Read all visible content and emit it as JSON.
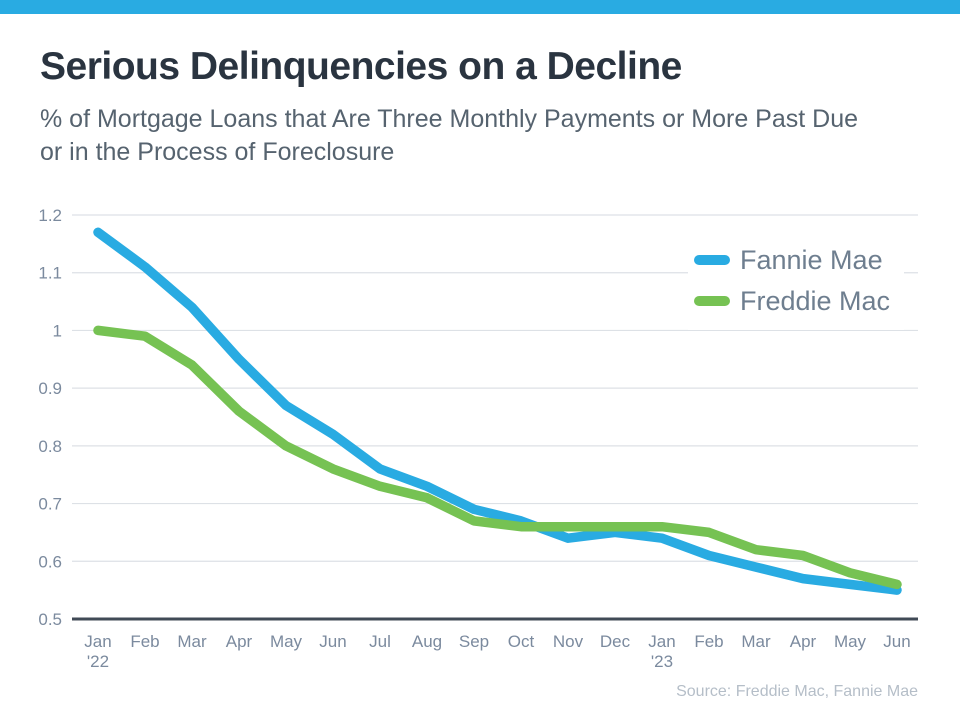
{
  "header": {
    "title": "Serious Delinquencies on a Decline",
    "subtitle_lines": [
      "% of Mortgage Loans that Are Three Monthly Payments or More Past Due",
      "or in the Process of Foreclosure"
    ]
  },
  "chart_data": {
    "type": "line",
    "title": "Serious Delinquencies on a Decline",
    "xlabel": "",
    "ylabel": "",
    "ylim": [
      0.5,
      1.2
    ],
    "grid": true,
    "legend_position": "top-right",
    "ytick_labels": [
      "1.2",
      "1.1",
      "1",
      "0.9",
      "0.8",
      "0.7",
      "0.6",
      "0.5"
    ],
    "categories": [
      "Jan '22",
      "Feb",
      "Mar",
      "Apr",
      "May",
      "Jun",
      "Jul",
      "Aug",
      "Sep",
      "Oct",
      "Nov",
      "Dec",
      "Jan '23",
      "Feb",
      "Mar",
      "Apr",
      "May",
      "Jun"
    ],
    "series": [
      {
        "name": "Fannie Mae",
        "color": "#29ABE2",
        "values": [
          1.17,
          1.11,
          1.04,
          0.95,
          0.87,
          0.82,
          0.76,
          0.73,
          0.69,
          0.67,
          0.64,
          0.65,
          0.64,
          0.61,
          0.59,
          0.57,
          0.56,
          0.55
        ]
      },
      {
        "name": "Freddie Mac",
        "color": "#76C253",
        "values": [
          1.0,
          0.99,
          0.94,
          0.86,
          0.8,
          0.76,
          0.73,
          0.71,
          0.67,
          0.66,
          0.66,
          0.66,
          0.66,
          0.65,
          0.62,
          0.61,
          0.58,
          0.56
        ]
      }
    ]
  },
  "footer": {
    "source": "Source: Freddie Mac, Fannie Mae"
  },
  "colors": {
    "accent_bar": "#29ABE2",
    "title": "#2A3440",
    "subtitle": "#56636F",
    "tick_label": "#7B8A9E",
    "gridline": "#DDE1E6",
    "axis_line": "#404A56",
    "source_text": "#B5BEC8"
  }
}
